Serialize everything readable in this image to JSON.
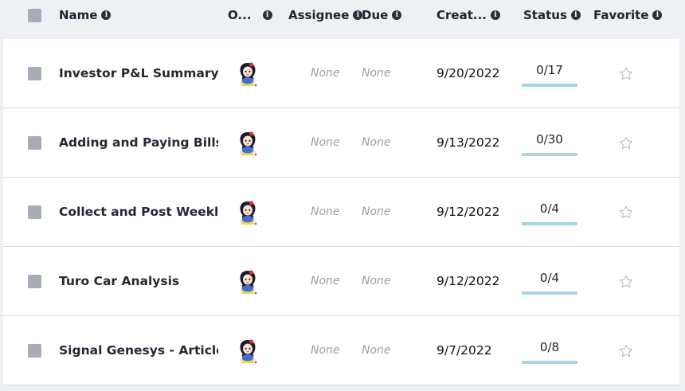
{
  "header": {
    "name": "Name",
    "owner": "O...",
    "assignee": "Assignee",
    "due": "Due",
    "created": "Creat...",
    "status": "Status",
    "favorite": "Favorite",
    "info_icon_glyph": "i"
  },
  "rows": [
    {
      "name": "Investor P&L Summary T...",
      "assignee": "None",
      "due": "None",
      "created": "9/20/2022",
      "status": "0/17",
      "progress": 0,
      "favorite": false
    },
    {
      "name": "Adding and Paying Bills",
      "assignee": "None",
      "due": "None",
      "created": "9/13/2022",
      "status": "0/30",
      "progress": 0,
      "favorite": false
    },
    {
      "name": "Collect and Post Weekly ...",
      "assignee": "None",
      "due": "None",
      "created": "9/12/2022",
      "status": "0/4",
      "progress": 0,
      "favorite": false
    },
    {
      "name": "Turo Car Analysis",
      "assignee": "None",
      "due": "None",
      "created": "9/12/2022",
      "status": "0/4",
      "progress": 0,
      "favorite": false
    },
    {
      "name": "Signal Genesys - Article ...",
      "assignee": "None",
      "due": "None",
      "created": "9/7/2022",
      "status": "0/8",
      "progress": 0,
      "favorite": false
    }
  ],
  "colors": {
    "background": "#eef0f4",
    "row_background": "#ffffff",
    "checkbox": "#a7acb7",
    "progress_bar": "#a9d4e6",
    "muted_text": "#9aa0ab"
  },
  "icons": {
    "owner_avatar": "avatar-icon",
    "favorite": "star-outline-icon",
    "info": "info-icon"
  }
}
